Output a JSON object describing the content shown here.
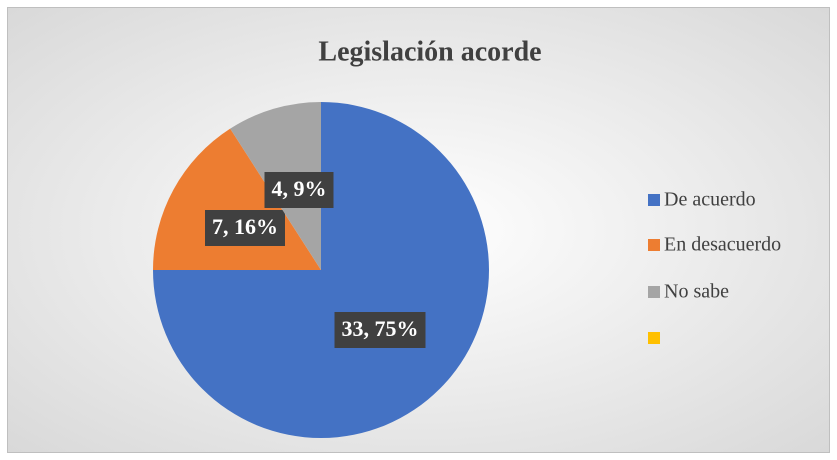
{
  "chart_data": {
    "type": "pie",
    "title": "Legislación acorde",
    "categories": [
      "De acuerdo",
      "En desacuerdo",
      "No sabe",
      null
    ],
    "values": [
      33,
      7,
      4,
      0
    ],
    "value_labels": [
      "33, 75%",
      "7, 16%",
      "4, 9%",
      null
    ],
    "colors": [
      "#4472c4",
      "#ed7d31",
      "#a5a5a5",
      "#ffc000"
    ],
    "legend": "right"
  }
}
